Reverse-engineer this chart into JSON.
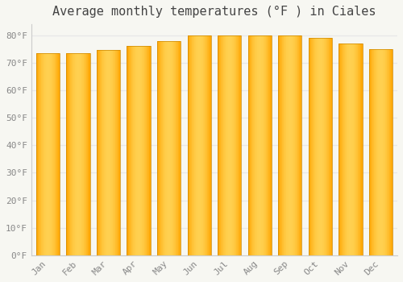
{
  "title": "Average monthly temperatures (°F ) in Ciales",
  "months": [
    "Jan",
    "Feb",
    "Mar",
    "Apr",
    "May",
    "Jun",
    "Jul",
    "Aug",
    "Sep",
    "Oct",
    "Nov",
    "Dec"
  ],
  "values": [
    73.5,
    73.5,
    74.5,
    76.0,
    78.0,
    80.0,
    80.0,
    80.0,
    80.0,
    79.0,
    77.0,
    75.0
  ],
  "bar_color_center": "#FFD060",
  "bar_color_edge": "#FFA500",
  "background_color": "#f7f7f2",
  "grid_color": "#e8e8e8",
  "ylim": [
    0,
    84
  ],
  "ytick_step": 10,
  "title_fontsize": 11,
  "tick_fontsize": 8,
  "tick_font": "monospace",
  "title_color": "#444444",
  "tick_color": "#888888"
}
